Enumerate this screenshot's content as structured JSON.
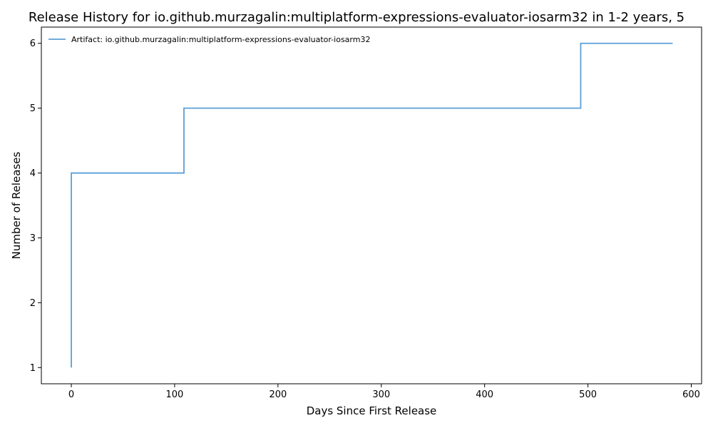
{
  "chart_data": {
    "type": "line",
    "title": "Release History for io.github.murzagalin:multiplatform-expressions-evaluator-iosarm32 in 1-2 years, 5",
    "xlabel": "Days Since First Release",
    "ylabel": "Number of Releases",
    "xlim": [
      -29,
      610
    ],
    "ylim": [
      0.75,
      6.25
    ],
    "xticks": [
      0,
      100,
      200,
      300,
      400,
      500,
      600
    ],
    "yticks": [
      1,
      2,
      3,
      4,
      5,
      6
    ],
    "grid": false,
    "legend_position": "top-left",
    "step": "post",
    "series": [
      {
        "name": "Artifact: io.github.murzagalin:multiplatform-expressions-evaluator-iosarm32",
        "color": "#5b9fd6",
        "x": [
          0,
          0,
          0,
          109,
          493,
          582
        ],
        "y": [
          1,
          2,
          4,
          5,
          6,
          6
        ]
      }
    ]
  }
}
